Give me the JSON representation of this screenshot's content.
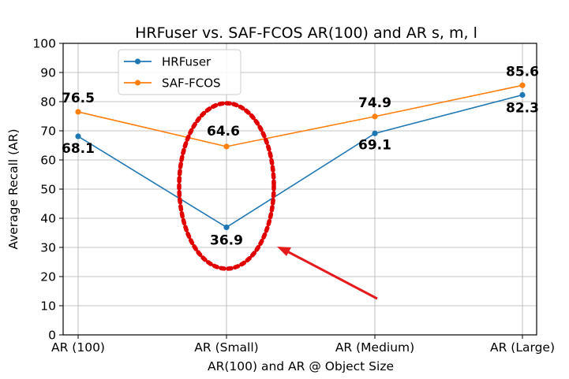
{
  "chart_data": {
    "type": "line",
    "title": "HRFuser vs. SAF-FCOS AR(100) and AR s, m, l",
    "xlabel": "AR(100) and AR @ Object Size",
    "ylabel": "Average Recall (AR)",
    "categories": [
      "AR (100)",
      "AR (Small)",
      "AR (Medium)",
      "AR (Large)"
    ],
    "ylim": [
      0,
      100
    ],
    "yticks": [
      "0",
      "10",
      "20",
      "30",
      "40",
      "50",
      "60",
      "70",
      "80",
      "90",
      "100"
    ],
    "grid": true,
    "legend_position": "top-left",
    "series": [
      {
        "name": "HRFuser",
        "color": "#1f77b4",
        "values": [
          68.1,
          36.9,
          69.1,
          82.3
        ],
        "labels": [
          "68.1",
          "36.9",
          "69.1",
          "82.3"
        ]
      },
      {
        "name": "SAF-FCOS",
        "color": "#ff7f0e",
        "values": [
          76.5,
          64.6,
          74.9,
          85.6
        ],
        "labels": [
          "76.5",
          "64.6",
          "74.9",
          "85.6"
        ]
      }
    ],
    "annotations": {
      "highlight_category": "AR (Small)",
      "highlight_shape": "dotted-ellipse",
      "highlight_color": "#e00000",
      "arrow_color": "#e41a1c"
    }
  }
}
